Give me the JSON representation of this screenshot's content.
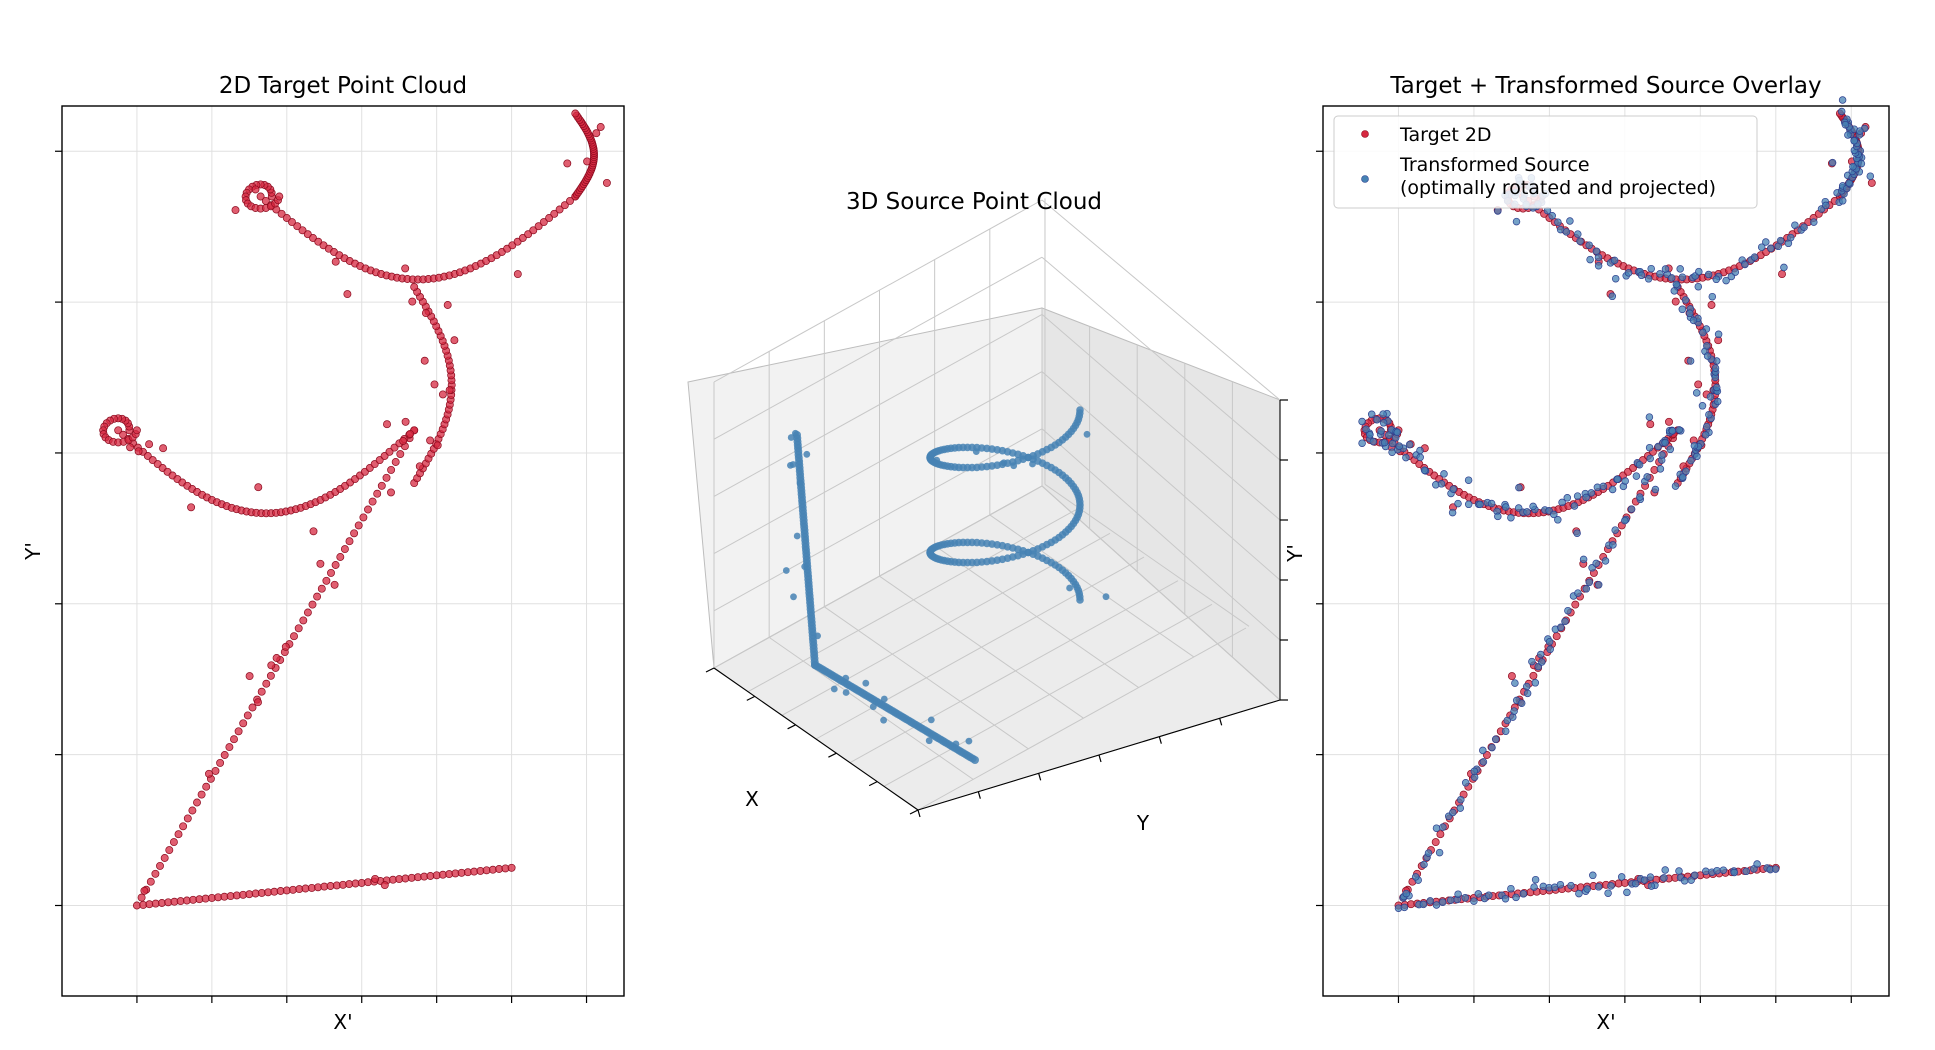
{
  "colors": {
    "target": "#d62840",
    "target_edge": "#8b0a1e",
    "source": "#4682b4",
    "source_edge": "#2e3f8f"
  },
  "chart_data": [
    {
      "type": "scatter",
      "title": "2D Target Point Cloud",
      "xlabel": "X'",
      "ylabel": "Y'",
      "xlim": [
        -1.0,
        6.5
      ],
      "ylim": [
        -0.6,
        5.3
      ],
      "grid": true,
      "tick_labels": "hidden",
      "series": [
        {
          "name": "",
          "color": "#d62840"
        }
      ]
    },
    {
      "type": "scatter",
      "title": "3D Source Point Cloud",
      "xlabel": "X",
      "ylabel": "Y",
      "zlabel": "Y'",
      "grid": true,
      "tick_labels": "hidden",
      "series": [
        {
          "name": "",
          "color": "#4682b4"
        }
      ]
    },
    {
      "type": "scatter",
      "title": "Target + Transformed Source Overlay",
      "xlabel": "X'",
      "ylabel": "",
      "xlim": [
        -1.0,
        6.5
      ],
      "ylim": [
        -0.6,
        5.3
      ],
      "grid": true,
      "tick_labels": "hidden",
      "legend_position": "top-left",
      "series": [
        {
          "name": "Target 2D",
          "color": "#d62840"
        },
        {
          "name": "Transformed Source\n(optimally rotated and projected)",
          "color": "#4682b4"
        }
      ]
    }
  ],
  "legend": {
    "target_label": "Target 2D",
    "source_label_line1": "Transformed Source",
    "source_label_line2": "(optimally rotated and projected)"
  }
}
